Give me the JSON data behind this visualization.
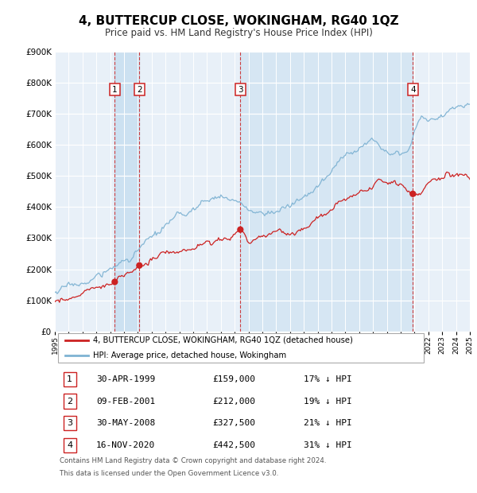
{
  "title": "4, BUTTERCUP CLOSE, WOKINGHAM, RG40 1QZ",
  "subtitle": "Price paid vs. HM Land Registry's House Price Index (HPI)",
  "ylim": [
    0,
    900000
  ],
  "yticks": [
    0,
    100000,
    200000,
    300000,
    400000,
    500000,
    600000,
    700000,
    800000,
    900000
  ],
  "hpi_color": "#7fb3d3",
  "price_color": "#cc2222",
  "marker_color": "#cc2222",
  "bg_color": "#e8f0f8",
  "grid_color": "#ffffff",
  "shade_color": "#c8dff0",
  "transactions": [
    {
      "num": 1,
      "date": "30-APR-1999",
      "price": 159000,
      "pct": "17%",
      "x_year": 1999.33
    },
    {
      "num": 2,
      "date": "09-FEB-2001",
      "price": 212000,
      "pct": "19%",
      "x_year": 2001.11
    },
    {
      "num": 3,
      "date": "30-MAY-2008",
      "price": 327500,
      "pct": "21%",
      "x_year": 2008.41
    },
    {
      "num": 4,
      "date": "16-NOV-2020",
      "price": 442500,
      "pct": "31%",
      "x_year": 2020.88
    }
  ],
  "legend_label_red": "4, BUTTERCUP CLOSE, WOKINGHAM, RG40 1QZ (detached house)",
  "legend_label_blue": "HPI: Average price, detached house, Wokingham",
  "footnote1": "Contains HM Land Registry data © Crown copyright and database right 2024.",
  "footnote2": "This data is licensed under the Open Government Licence v3.0.",
  "xmin": 1995,
  "xmax": 2025
}
